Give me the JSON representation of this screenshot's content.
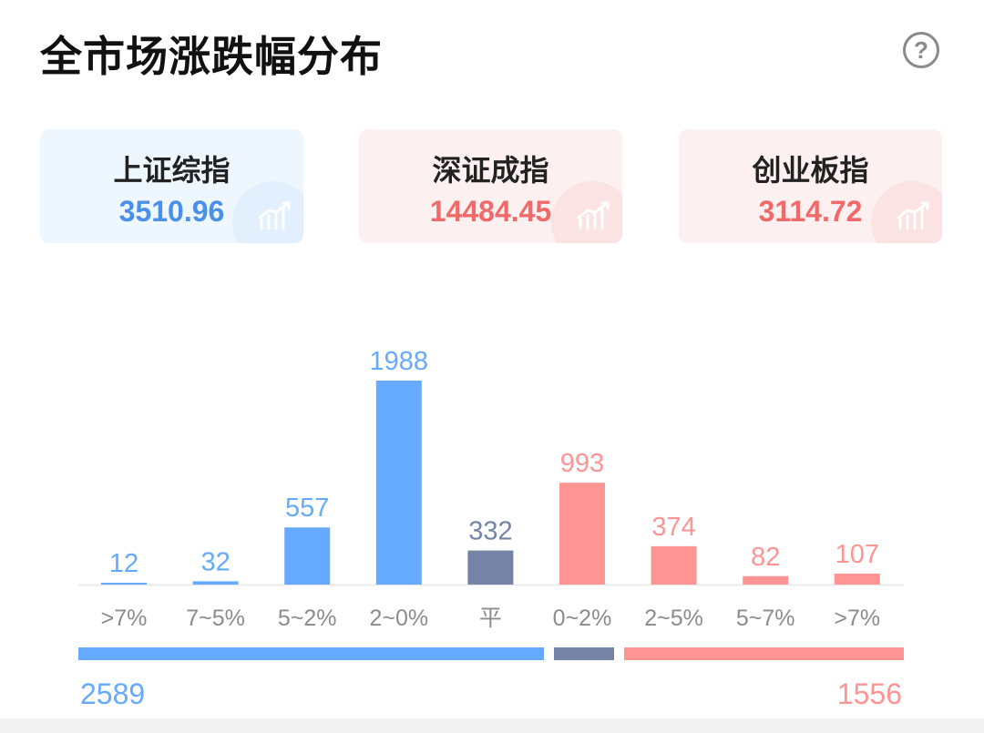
{
  "title": "全市场涨跌幅分布",
  "help_icon": "question-circle-icon",
  "indices": [
    {
      "name": "上证综指",
      "value": "3510.96",
      "tone": "down"
    },
    {
      "name": "深证成指",
      "value": "14484.45",
      "tone": "up"
    },
    {
      "name": "创业板指",
      "value": "3114.72",
      "tone": "up"
    }
  ],
  "colors": {
    "down": "#66aaff",
    "flat": "#7584a6",
    "up": "#fe9494",
    "down_text": "#4a8fe8",
    "up_text": "#f06a6a"
  },
  "chart_data": {
    "type": "bar",
    "categories": [
      ">7%",
      "7~5%",
      "5~2%",
      "2~0%",
      "平",
      "0~2%",
      "2~5%",
      "5~7%",
      ">7%"
    ],
    "values": [
      12,
      32,
      557,
      1988,
      332,
      993,
      374,
      82,
      107
    ],
    "tones": [
      "down",
      "down",
      "down",
      "down",
      "flat",
      "up",
      "up",
      "up",
      "up"
    ],
    "ylim": [
      0,
      1988
    ]
  },
  "summary": {
    "down_total": "2589",
    "up_total": "1556",
    "flat_total": 332
  }
}
